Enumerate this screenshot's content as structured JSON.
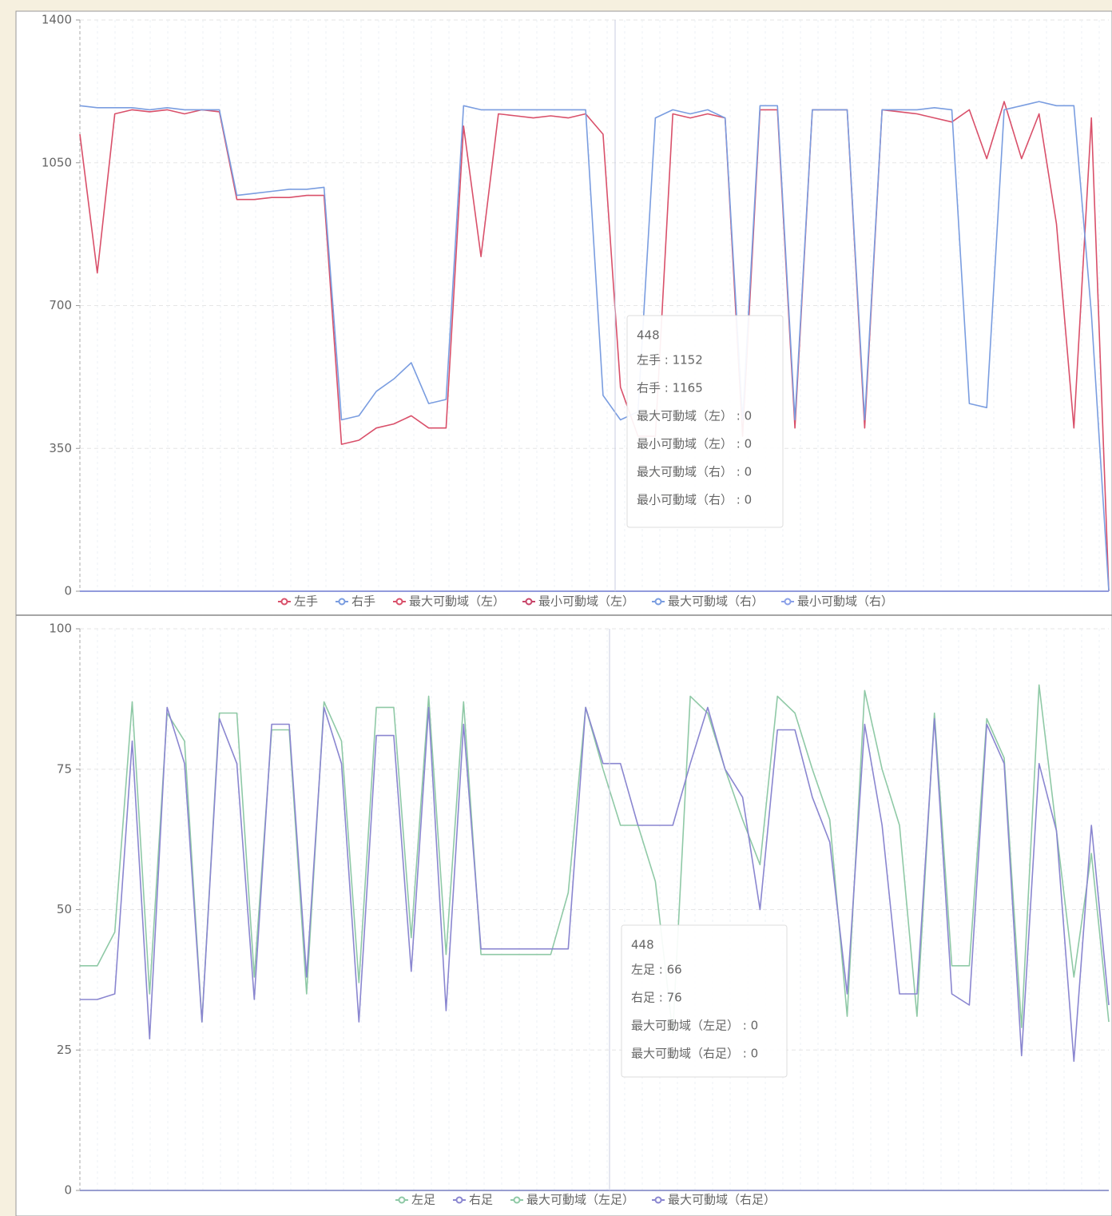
{
  "chart_data": [
    {
      "type": "line",
      "ylim": [
        0,
        1400
      ],
      "yticks": [
        0,
        350,
        700,
        1050,
        1400
      ],
      "grid": true,
      "legend": "bottom",
      "series": [
        {
          "name": "左手",
          "color": "#d9506a",
          "values": [
            1120,
            780,
            1170,
            1180,
            1175,
            1180,
            1170,
            1180,
            1175,
            960,
            960,
            965,
            965,
            970,
            970,
            360,
            370,
            400,
            410,
            430,
            400,
            400,
            1140,
            820,
            1170,
            1165,
            1160,
            1165,
            1160,
            1170,
            1120,
            500,
            380,
            380,
            1170,
            1160,
            1170,
            1160,
            380,
            1180,
            1180,
            400,
            1180,
            1180,
            1180,
            400,
            1180,
            1175,
            1170,
            1160,
            1150,
            1180,
            1060,
            1200,
            1060,
            1170,
            900,
            400,
            1160,
            0
          ]
        },
        {
          "name": "右手",
          "color": "#7a9de0",
          "values": [
            1190,
            1185,
            1185,
            1185,
            1180,
            1185,
            1180,
            1180,
            1180,
            970,
            975,
            980,
            985,
            985,
            990,
            420,
            430,
            490,
            520,
            560,
            460,
            470,
            1190,
            1180,
            1180,
            1180,
            1180,
            1180,
            1180,
            1180,
            480,
            420,
            440,
            1160,
            1180,
            1170,
            1180,
            1160,
            420,
            1190,
            1190,
            420,
            1180,
            1180,
            1180,
            420,
            1180,
            1180,
            1180,
            1185,
            1180,
            460,
            450,
            1180,
            1190,
            1200,
            1190,
            1190,
            680,
            0
          ]
        },
        {
          "name": "最大可動域（左）",
          "color": "#d9506a",
          "values": [
            0,
            0,
            0,
            0,
            0,
            0,
            0,
            0,
            0,
            0,
            0,
            0,
            0,
            0,
            0,
            0,
            0,
            0,
            0,
            0,
            0,
            0,
            0,
            0,
            0,
            0,
            0,
            0,
            0,
            0,
            0,
            0,
            0,
            0,
            0,
            0,
            0,
            0,
            0,
            0,
            0,
            0,
            0,
            0,
            0,
            0,
            0,
            0,
            0,
            0,
            0,
            0,
            0,
            0,
            0,
            0,
            0,
            0,
            0,
            0
          ]
        },
        {
          "name": "最小可動域（左）",
          "color": "#c8466a",
          "values": [
            0,
            0,
            0,
            0,
            0,
            0,
            0,
            0,
            0,
            0,
            0,
            0,
            0,
            0,
            0,
            0,
            0,
            0,
            0,
            0,
            0,
            0,
            0,
            0,
            0,
            0,
            0,
            0,
            0,
            0,
            0,
            0,
            0,
            0,
            0,
            0,
            0,
            0,
            0,
            0,
            0,
            0,
            0,
            0,
            0,
            0,
            0,
            0,
            0,
            0,
            0,
            0,
            0,
            0,
            0,
            0,
            0,
            0,
            0,
            0
          ]
        },
        {
          "name": "最大可動域（右）",
          "color": "#7a9de0",
          "values": [
            0,
            0,
            0,
            0,
            0,
            0,
            0,
            0,
            0,
            0,
            0,
            0,
            0,
            0,
            0,
            0,
            0,
            0,
            0,
            0,
            0,
            0,
            0,
            0,
            0,
            0,
            0,
            0,
            0,
            0,
            0,
            0,
            0,
            0,
            0,
            0,
            0,
            0,
            0,
            0,
            0,
            0,
            0,
            0,
            0,
            0,
            0,
            0,
            0,
            0,
            0,
            0,
            0,
            0,
            0,
            0,
            0,
            0,
            0,
            0
          ]
        },
        {
          "name": "最小可動域（右）",
          "color": "#8aa0e8",
          "values": [
            0,
            0,
            0,
            0,
            0,
            0,
            0,
            0,
            0,
            0,
            0,
            0,
            0,
            0,
            0,
            0,
            0,
            0,
            0,
            0,
            0,
            0,
            0,
            0,
            0,
            0,
            0,
            0,
            0,
            0,
            0,
            0,
            0,
            0,
            0,
            0,
            0,
            0,
            0,
            0,
            0,
            0,
            0,
            0,
            0,
            0,
            0,
            0,
            0,
            0,
            0,
            0,
            0,
            0,
            0,
            0,
            0,
            0,
            0,
            0
          ]
        }
      ],
      "tooltip": {
        "title": "448",
        "lines": [
          {
            "text": "左手 : 1152",
            "color": "#d9506a"
          },
          {
            "text": "右手 : 1165",
            "color": "#7a9de0"
          },
          {
            "text": "最大可動域（左） : 0",
            "color": "#d9506a"
          },
          {
            "text": "最小可動域（左） : 0",
            "color": "#d9506a"
          },
          {
            "text": "最大可動域（右） : 0",
            "color": "#7a9de0"
          },
          {
            "text": "最小可動域（右） : 0",
            "color": "#8aa0e8"
          }
        ]
      }
    },
    {
      "type": "line",
      "ylim": [
        0,
        100
      ],
      "yticks": [
        0,
        25,
        50,
        75,
        100
      ],
      "grid": true,
      "legend": "bottom",
      "series": [
        {
          "name": "左足",
          "color": "#8fc9a6",
          "values": [
            40,
            40,
            46,
            87,
            35,
            85,
            80,
            30,
            85,
            85,
            38,
            82,
            82,
            35,
            87,
            80,
            37,
            86,
            86,
            45,
            88,
            42,
            87,
            42,
            42,
            42,
            42,
            42,
            53,
            86,
            75,
            65,
            65,
            55,
            28,
            88,
            85,
            75,
            66,
            58,
            88,
            85,
            75,
            66,
            31,
            89,
            75,
            65,
            31,
            85,
            40,
            40,
            84,
            77,
            29,
            90,
            64,
            38,
            60,
            30
          ]
        },
        {
          "name": "右足",
          "color": "#8a86d0",
          "values": [
            34,
            34,
            35,
            80,
            27,
            86,
            76,
            30,
            84,
            76,
            34,
            83,
            83,
            38,
            86,
            76,
            30,
            81,
            81,
            39,
            86,
            32,
            83,
            43,
            43,
            43,
            43,
            43,
            43,
            86,
            76,
            76,
            65,
            65,
            65,
            76,
            86,
            75,
            70,
            50,
            82,
            82,
            70,
            62,
            35,
            83,
            65,
            35,
            35,
            84,
            35,
            33,
            83,
            76,
            24,
            76,
            64,
            23,
            65,
            33
          ]
        },
        {
          "name": "最大可動域（左足）",
          "color": "#8fc9a6",
          "values": [
            0,
            0,
            0,
            0,
            0,
            0,
            0,
            0,
            0,
            0,
            0,
            0,
            0,
            0,
            0,
            0,
            0,
            0,
            0,
            0,
            0,
            0,
            0,
            0,
            0,
            0,
            0,
            0,
            0,
            0,
            0,
            0,
            0,
            0,
            0,
            0,
            0,
            0,
            0,
            0,
            0,
            0,
            0,
            0,
            0,
            0,
            0,
            0,
            0,
            0,
            0,
            0,
            0,
            0,
            0,
            0,
            0,
            0,
            0,
            0
          ]
        },
        {
          "name": "最大可動域（右足）",
          "color": "#8a86d0",
          "values": [
            0,
            0,
            0,
            0,
            0,
            0,
            0,
            0,
            0,
            0,
            0,
            0,
            0,
            0,
            0,
            0,
            0,
            0,
            0,
            0,
            0,
            0,
            0,
            0,
            0,
            0,
            0,
            0,
            0,
            0,
            0,
            0,
            0,
            0,
            0,
            0,
            0,
            0,
            0,
            0,
            0,
            0,
            0,
            0,
            0,
            0,
            0,
            0,
            0,
            0,
            0,
            0,
            0,
            0,
            0,
            0,
            0,
            0,
            0,
            0
          ]
        }
      ],
      "tooltip": {
        "title": "448",
        "lines": [
          {
            "text": "左足 : 66",
            "color": "#8fc9a6"
          },
          {
            "text": "右足 : 76",
            "color": "#8a86d0"
          },
          {
            "text": "最大可動域（左足） : 0",
            "color": "#8fc9a6"
          },
          {
            "text": "最大可動域（右足） : 0",
            "color": "#8a86d0"
          }
        ]
      }
    }
  ]
}
